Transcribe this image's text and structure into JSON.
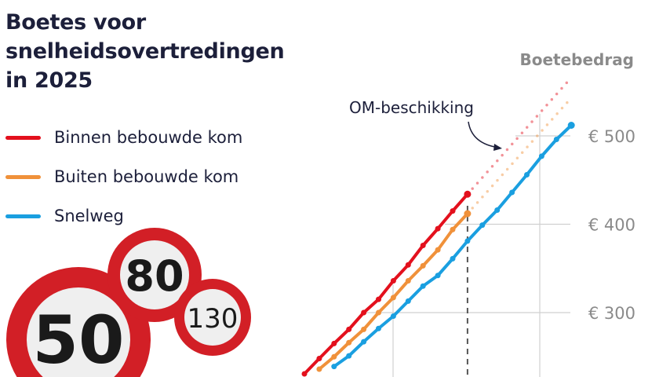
{
  "chart_data": {
    "type": "line",
    "title": "Boetes voor snelheidsovertredingen in 2025",
    "ylabel": "Boetebedrag",
    "ylim": [
      220,
      580
    ],
    "y_ticks": [
      300,
      400,
      500
    ],
    "y_tick_labels": [
      "€ 300",
      "€ 400",
      "€ 500"
    ],
    "grid": true,
    "legend_placement": "top-left",
    "annotation": "OM-beschikking",
    "om_boundary_index": 11,
    "series": [
      {
        "name": "Binnen bebouwde kom",
        "color": "#e3101d",
        "start_index": 0,
        "values": [
          230,
          248,
          265,
          281,
          300,
          315,
          336,
          354,
          376,
          395,
          415,
          434
        ],
        "projection_end": {
          "index": 18,
          "value": 566
        }
      },
      {
        "name": "Buiten bebouwde kom",
        "color": "#f0913a",
        "start_index": 1,
        "values": [
          236,
          250,
          266,
          281,
          300,
          317,
          336,
          353,
          371,
          394,
          412
        ],
        "projection_end": {
          "index": 18,
          "value": 543
        }
      },
      {
        "name": "Snelweg",
        "color": "#1a9fe0",
        "start_index": 2,
        "values": [
          239,
          251,
          267,
          282,
          296,
          313,
          330,
          342,
          361,
          381,
          399,
          416,
          436,
          456,
          477,
          496,
          512
        ]
      }
    ]
  },
  "signs": [
    "50",
    "80",
    "130"
  ]
}
